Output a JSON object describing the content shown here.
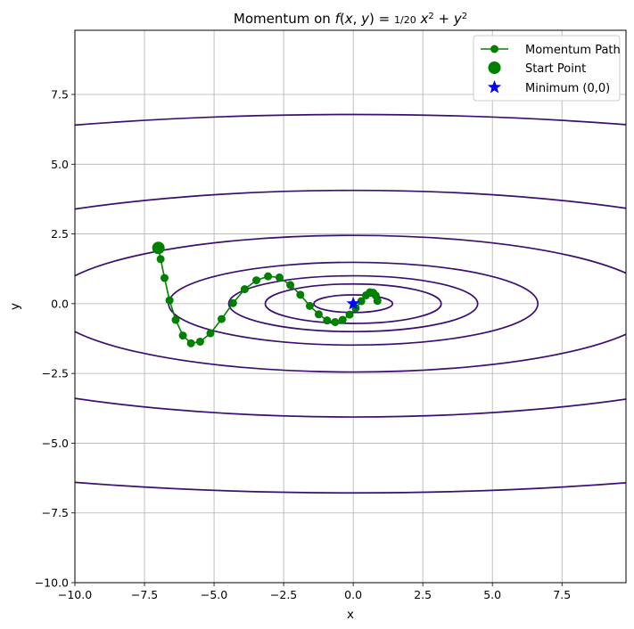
{
  "chart_data": {
    "type": "line",
    "title": "Momentum on f(x, y) = 1/20 x² + y²",
    "xlabel": "x",
    "ylabel": "y",
    "xlim": [
      -10,
      9.8
    ],
    "ylim": [
      -10,
      9.8
    ],
    "xticks": [
      "−10.0",
      "−7.5",
      "−5.0",
      "−2.5",
      "0.0",
      "2.5",
      "5.0",
      "7.5"
    ],
    "yticks": [
      "−10.0",
      "−7.5",
      "−5.0",
      "−2.5",
      "0.0",
      "2.5",
      "5.0",
      "7.5"
    ],
    "xtick_values": [
      -10,
      -7.5,
      -5,
      -2.5,
      0,
      2.5,
      5,
      7.5
    ],
    "ytick_values": [
      -10,
      -7.5,
      -5,
      -2.5,
      0,
      2.5,
      5,
      7.5
    ],
    "grid": true,
    "legend_position": "top-right",
    "contour_levels": [
      0.1,
      0.5,
      1,
      2.2,
      6,
      16.5,
      46
    ],
    "contour_color": "#3b0f70",
    "series": [
      {
        "name": "Momentum Path",
        "color": "#008000",
        "marker": "circle",
        "x": [
          -7,
          -6.92,
          -6.78,
          -6.6,
          -6.38,
          -6.12,
          -5.83,
          -5.5,
          -5.13,
          -4.73,
          -4.32,
          -3.9,
          -3.48,
          -3.06,
          -2.65,
          -2.26,
          -1.9,
          -1.56,
          -1.24,
          -0.94,
          -0.65,
          -0.38,
          -0.13,
          0.09,
          0.29,
          0.46,
          0.6,
          0.72,
          0.81,
          0.87
        ],
        "y": [
          2,
          1.6,
          0.92,
          0.12,
          -0.58,
          -1.14,
          -1.42,
          -1.36,
          -1.06,
          -0.55,
          0.02,
          0.52,
          0.84,
          0.98,
          0.94,
          0.67,
          0.32,
          -0.08,
          -0.38,
          -0.6,
          -0.66,
          -0.58,
          -0.39,
          -0.16,
          0.09,
          0.3,
          0.41,
          0.39,
          0.29,
          0.1
        ]
      },
      {
        "name": "Start Point",
        "color": "#008000",
        "marker": "large-circle",
        "x": [
          -7
        ],
        "y": [
          2
        ]
      },
      {
        "name": "Minimum (0,0)",
        "color": "#0000ff",
        "marker": "star",
        "x": [
          0
        ],
        "y": [
          0
        ]
      }
    ]
  }
}
